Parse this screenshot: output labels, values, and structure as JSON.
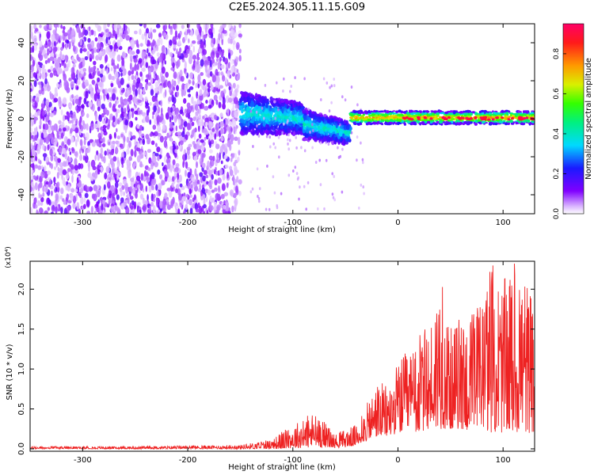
{
  "figure_title": "C2E5.2024.305.11.15.G09",
  "chart_data": [
    {
      "type": "heatmap",
      "title": "C2E5.2024.305.11.15.G09",
      "xlabel": "Height of straight line (km)",
      "ylabel": "Frequency (Hz)",
      "xlim": [
        -350,
        130
      ],
      "ylim": [
        -50,
        50
      ],
      "xticks": [
        -300,
        -200,
        -100,
        0,
        100
      ],
      "xtick_labels": [
        "-300",
        "-200",
        "-100",
        "0",
        "100"
      ],
      "yticks": [
        -40,
        -20,
        0,
        20,
        40
      ],
      "ytick_labels": [
        "-40",
        "-20",
        "0",
        "20",
        "40"
      ],
      "grid": false,
      "colorbar": {
        "label": "Normalized spectral amplitude",
        "range": [
          0,
          0.95
        ],
        "ticks": [
          0.0,
          0.2,
          0.4,
          0.6,
          0.8
        ],
        "tick_labels": [
          "0.0",
          "0.2",
          "0.4",
          "0.6",
          "0.8"
        ],
        "colormap": [
          "#ffffff",
          "#7a00e6",
          "#1a1aff",
          "#00e6e6",
          "#00e600",
          "#e6e600",
          "#ff8000",
          "#ff0000",
          "#ff0066"
        ]
      },
      "description_regions": [
        {
          "x_range": [
            -350,
            -150
          ],
          "freq_range": [
            -50,
            50
          ],
          "amplitude": 0.05
        },
        {
          "x_range": [
            -150,
            -45
          ],
          "freq_range": [
            -20,
            15
          ],
          "amplitude": 0.3
        },
        {
          "x_range": [
            -45,
            130
          ],
          "freq_range": [
            -3,
            5
          ],
          "amplitude": 0.85
        }
      ]
    },
    {
      "type": "line",
      "xlabel": "Height of straight line (km)",
      "ylabel": "SNR (10 * v/v)",
      "y_multiplier": "(x10⁴)",
      "xlim": [
        -350,
        130
      ],
      "ylim": [
        -0.03,
        2.35
      ],
      "xticks": [
        -300,
        -200,
        -100,
        0,
        100
      ],
      "xtick_labels": [
        "-300",
        "-200",
        "-100",
        "0",
        "100"
      ],
      "yticks": [
        0.0,
        0.5,
        1.0,
        1.5,
        2.0
      ],
      "ytick_labels": [
        "0.0",
        "0.5",
        "1.0",
        "1.5",
        "2.0"
      ],
      "grid": false,
      "series": [
        {
          "name": "SNR",
          "color": "#ee2222",
          "x": [
            -350,
            -300,
            -250,
            -200,
            -150,
            -120,
            -110,
            -100,
            -90,
            -80,
            -70,
            -60,
            -50,
            -40,
            -30,
            -20,
            -10,
            0,
            10,
            20,
            30,
            40,
            50,
            60,
            70,
            80,
            90,
            100,
            110,
            120,
            130
          ],
          "envelope_max": [
            0.03,
            0.03,
            0.03,
            0.04,
            0.05,
            0.12,
            0.22,
            0.3,
            0.4,
            0.47,
            0.35,
            0.18,
            0.25,
            0.3,
            0.55,
            0.85,
            0.8,
            1.1,
            1.25,
            1.45,
            1.55,
            2.27,
            1.5,
            1.7,
            1.75,
            1.9,
            2.35,
            2.1,
            2.33,
            2.32,
            1.65
          ],
          "envelope_min": [
            0.0,
            0.0,
            0.0,
            0.0,
            0.0,
            0.0,
            0.0,
            0.01,
            0.01,
            0.02,
            0.02,
            0.01,
            0.02,
            0.04,
            0.1,
            0.15,
            0.15,
            0.2,
            0.2,
            0.2,
            0.25,
            0.25,
            0.25,
            0.25,
            0.2,
            0.25,
            0.2,
            0.2,
            0.2,
            0.2,
            0.2
          ]
        }
      ]
    }
  ]
}
